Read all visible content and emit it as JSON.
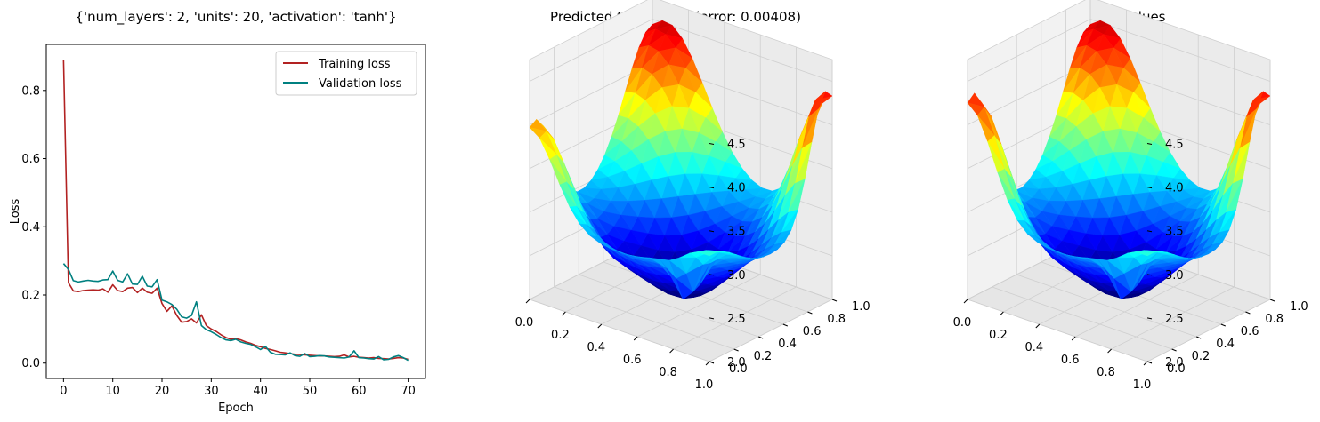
{
  "chart_data": [
    {
      "type": "line",
      "title": "{'num_layers': 2, 'units': 20, 'activation': 'tanh'}",
      "xlabel": "Epoch",
      "ylabel": "Loss",
      "xlim": [
        -3.5,
        73.5
      ],
      "ylim": [
        -0.045,
        0.935
      ],
      "xticks": [
        0,
        10,
        20,
        30,
        40,
        50,
        60,
        70
      ],
      "yticks": [
        0.0,
        0.2,
        0.4,
        0.6,
        0.8
      ],
      "legend": "top-right",
      "grid": false,
      "series": [
        {
          "name": "Training loss",
          "color": "#b22222",
          "values": [
            0.888,
            0.236,
            0.212,
            0.21,
            0.213,
            0.214,
            0.215,
            0.214,
            0.218,
            0.208,
            0.23,
            0.213,
            0.21,
            0.22,
            0.222,
            0.207,
            0.22,
            0.208,
            0.205,
            0.22,
            0.175,
            0.152,
            0.168,
            0.14,
            0.12,
            0.122,
            0.13,
            0.118,
            0.142,
            0.11,
            0.1,
            0.093,
            0.083,
            0.075,
            0.07,
            0.072,
            0.068,
            0.062,
            0.058,
            0.052,
            0.048,
            0.043,
            0.04,
            0.036,
            0.032,
            0.03,
            0.028,
            0.026,
            0.025,
            0.024,
            0.023,
            0.022,
            0.021,
            0.021,
            0.02,
            0.019,
            0.02,
            0.024,
            0.018,
            0.02,
            0.017,
            0.016,
            0.015,
            0.016,
            0.014,
            0.013,
            0.012,
            0.014,
            0.016,
            0.015,
            0.011
          ]
        },
        {
          "name": "Validation loss",
          "color": "#008080",
          "values": [
            0.292,
            0.275,
            0.242,
            0.238,
            0.241,
            0.243,
            0.241,
            0.24,
            0.244,
            0.245,
            0.27,
            0.243,
            0.238,
            0.262,
            0.232,
            0.231,
            0.255,
            0.226,
            0.224,
            0.245,
            0.185,
            0.18,
            0.172,
            0.158,
            0.136,
            0.132,
            0.14,
            0.18,
            0.11,
            0.098,
            0.092,
            0.084,
            0.075,
            0.068,
            0.066,
            0.07,
            0.062,
            0.058,
            0.055,
            0.048,
            0.04,
            0.049,
            0.032,
            0.026,
            0.025,
            0.024,
            0.03,
            0.022,
            0.02,
            0.028,
            0.019,
            0.02,
            0.022,
            0.021,
            0.018,
            0.017,
            0.016,
            0.015,
            0.018,
            0.036,
            0.016,
            0.015,
            0.013,
            0.012,
            0.019,
            0.01,
            0.011,
            0.018,
            0.022,
            0.016,
            0.008
          ]
        }
      ]
    },
    {
      "type": "surface",
      "title": "Predicted test values (error: 0.00408)",
      "xticks": [
        "0.0",
        "0.2",
        "0.4",
        "0.6",
        "0.8",
        "1.0"
      ],
      "yticks": [
        "0.0",
        "0.2",
        "0.4",
        "0.6",
        "0.8",
        "1.0"
      ],
      "zticks": [
        "2.0",
        "2.5",
        "3.0",
        "3.5",
        "4.0",
        "4.5"
      ],
      "xlim": [
        0,
        1
      ],
      "ylim": [
        0,
        1
      ],
      "zlim": [
        2.0,
        4.75
      ],
      "colormap": "jet",
      "grid": true
    },
    {
      "type": "surface",
      "title": "True test values",
      "xticks": [
        "0.0",
        "0.2",
        "0.4",
        "0.6",
        "0.8",
        "1.0"
      ],
      "yticks": [
        "0.0",
        "0.2",
        "0.4",
        "0.6",
        "0.8",
        "1.0"
      ],
      "zticks": [
        "2.0",
        "2.5",
        "3.0",
        "3.5",
        "4.0",
        "4.5"
      ],
      "xlim": [
        0,
        1
      ],
      "ylim": [
        0,
        1
      ],
      "zlim": [
        2.0,
        4.75
      ],
      "colormap": "jet",
      "grid": true
    }
  ]
}
